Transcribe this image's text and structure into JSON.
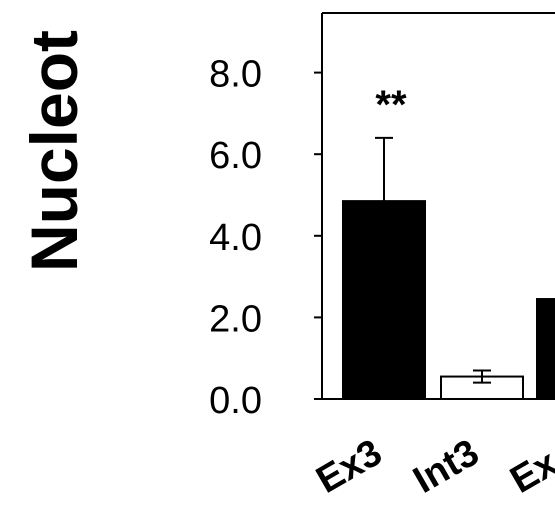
{
  "chart_data": {
    "type": "bar",
    "ylabel": "Nucleot",
    "yticks": [
      "0.0",
      "2.0",
      "4.0",
      "6.0",
      "8.0"
    ],
    "ytick_values": [
      0,
      2,
      4,
      6,
      8
    ],
    "ylim": [
      0,
      9
    ],
    "categories": [
      "Ex3",
      "Int3",
      "Ex"
    ],
    "values": [
      4.85,
      0.55,
      2.45
    ],
    "errors": [
      1.55,
      0.15,
      null
    ],
    "fills": [
      "#000000",
      "#ffffff",
      "#000000"
    ],
    "annotations": [
      {
        "category": "Ex3",
        "text": "**"
      }
    ],
    "grid": false
  }
}
